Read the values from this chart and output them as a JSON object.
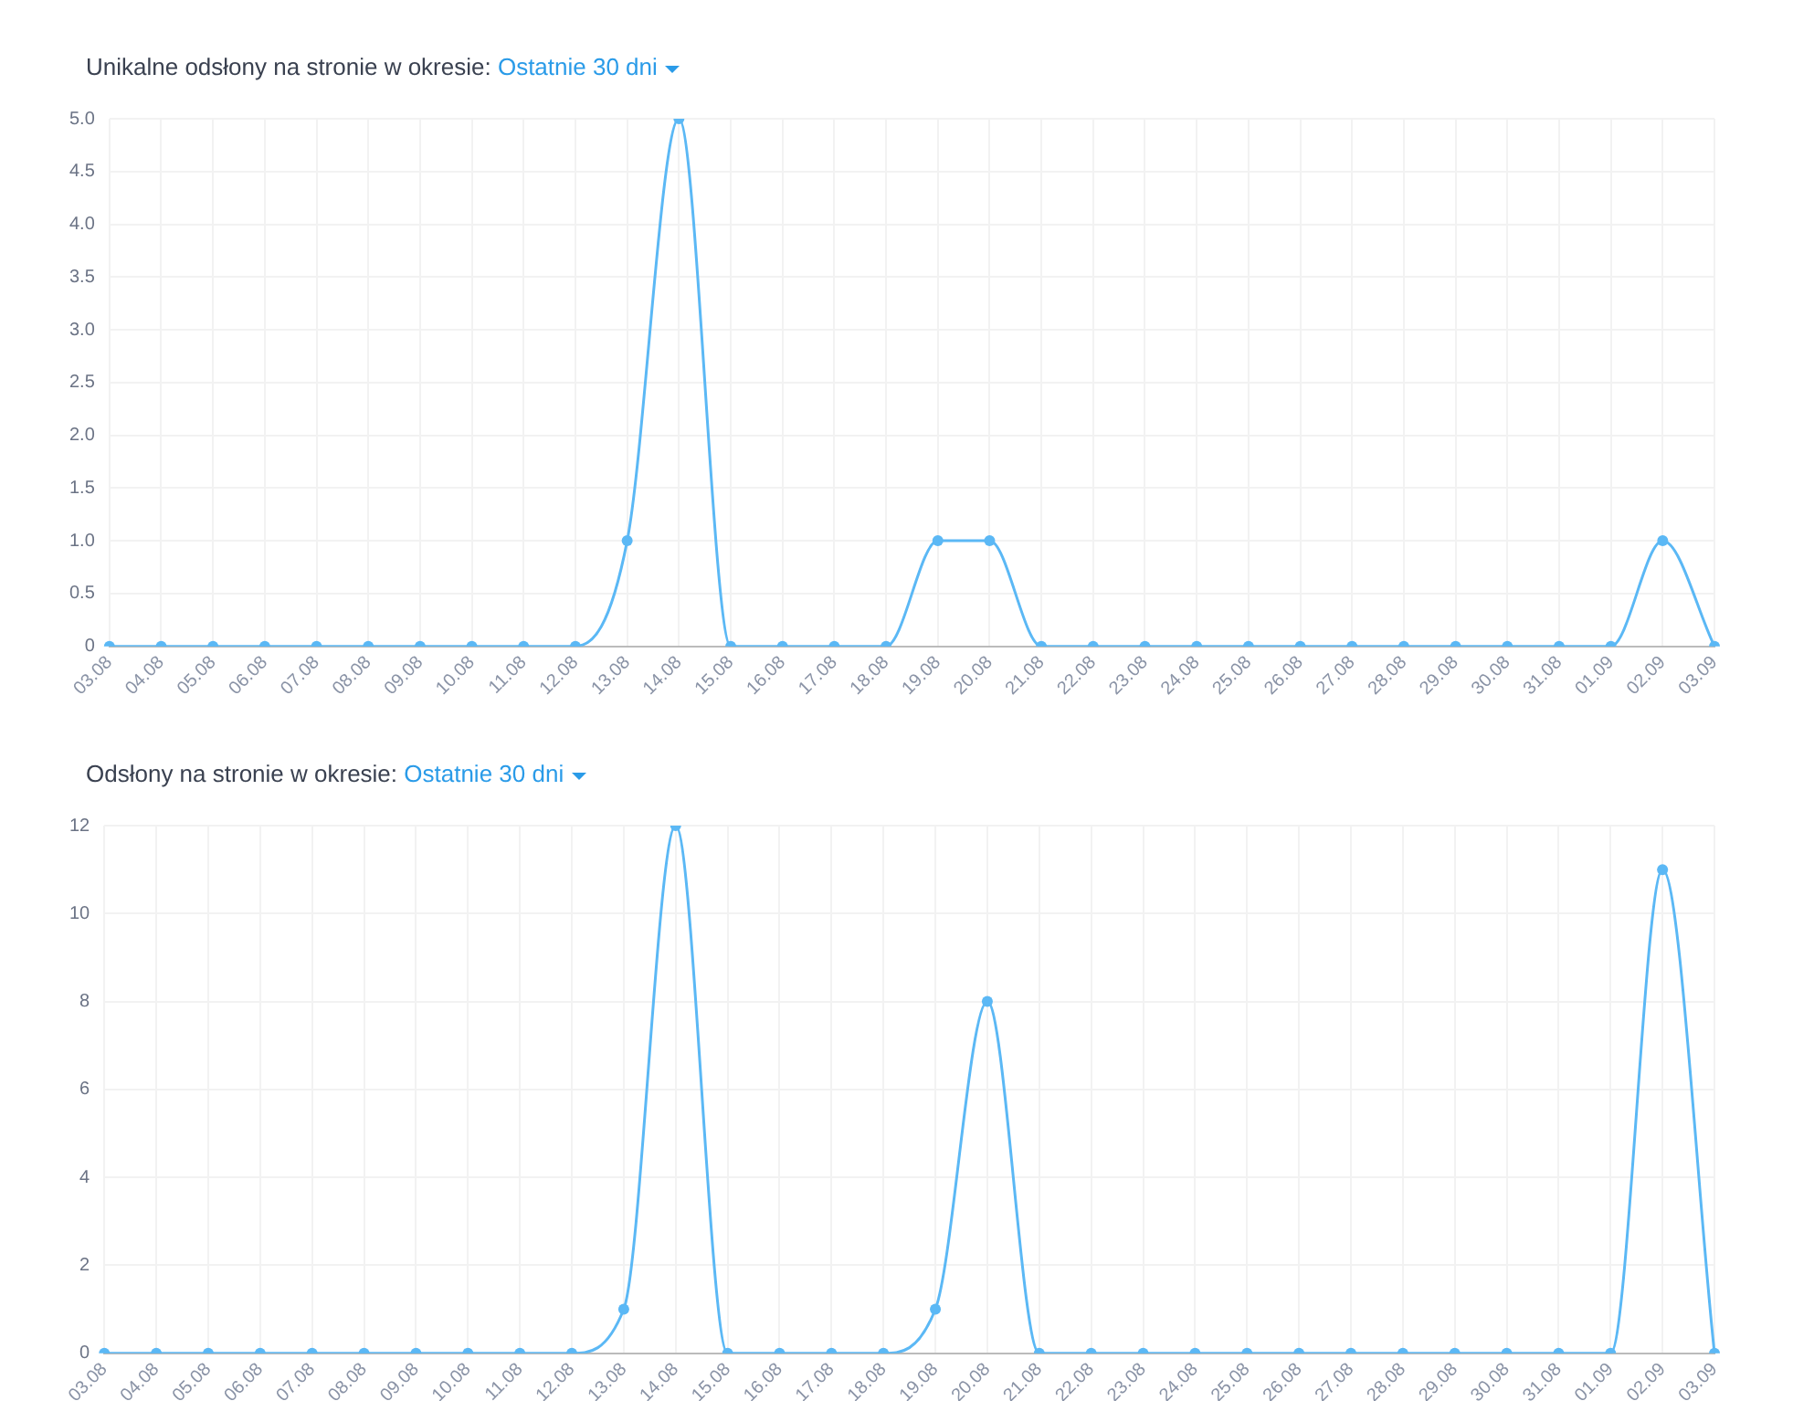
{
  "chart_data": [
    {
      "type": "line",
      "title": "Unikalne odsłony na stronie w okresie:",
      "subtitle": "Ostatnie 30 dni",
      "categories": [
        "03.08",
        "04.08",
        "05.08",
        "06.08",
        "07.08",
        "08.08",
        "09.08",
        "10.08",
        "11.08",
        "12.08",
        "13.08",
        "14.08",
        "15.08",
        "16.08",
        "17.08",
        "18.08",
        "19.08",
        "20.08",
        "21.08",
        "22.08",
        "23.08",
        "24.08",
        "25.08",
        "26.08",
        "27.08",
        "28.08",
        "29.08",
        "30.08",
        "31.08",
        "01.09",
        "02.09",
        "03.09"
      ],
      "series": [
        {
          "color": "#5bb8f5",
          "values": [
            0,
            0,
            0,
            0,
            0,
            0,
            0,
            0,
            0,
            0,
            1,
            5,
            0,
            0,
            0,
            0,
            1,
            1,
            0,
            0,
            0,
            0,
            0,
            0,
            0,
            0,
            0,
            0,
            0,
            0,
            1,
            0
          ]
        }
      ],
      "ylim": [
        0,
        5
      ],
      "yticks": [
        0,
        0.5,
        {
          "value": 1,
          "label": "1.0"
        },
        1.5,
        {
          "value": 2,
          "label": "2.0"
        },
        2.5,
        {
          "value": 3,
          "label": "3.0"
        },
        3.5,
        {
          "value": 4,
          "label": "4.0"
        },
        4.5,
        {
          "value": 5,
          "label": "5.0"
        }
      ],
      "grid": true,
      "legend": false,
      "marker": "circle",
      "line_style": "solid"
    },
    {
      "type": "line",
      "title": "Odsłony na stronie w okresie:",
      "subtitle": "Ostatnie 30 dni",
      "categories": [
        "03.08",
        "04.08",
        "05.08",
        "06.08",
        "07.08",
        "08.08",
        "09.08",
        "10.08",
        "11.08",
        "12.08",
        "13.08",
        "14.08",
        "15.08",
        "16.08",
        "17.08",
        "18.08",
        "19.08",
        "20.08",
        "21.08",
        "22.08",
        "23.08",
        "24.08",
        "25.08",
        "26.08",
        "27.08",
        "28.08",
        "29.08",
        "30.08",
        "31.08",
        "01.09",
        "02.09",
        "03.09"
      ],
      "series": [
        {
          "color": "#5bb8f5",
          "values": [
            0,
            0,
            0,
            0,
            0,
            0,
            0,
            0,
            0,
            0,
            1,
            12,
            0,
            0,
            0,
            0,
            1,
            8,
            0,
            0,
            0,
            0,
            0,
            0,
            0,
            0,
            0,
            0,
            0,
            0,
            11,
            0
          ]
        }
      ],
      "ylim": [
        0,
        12
      ],
      "yticks": [
        0,
        2,
        4,
        6,
        8,
        10,
        12
      ],
      "grid": true,
      "legend": false,
      "marker": "circle",
      "line_style": "solid"
    }
  ]
}
